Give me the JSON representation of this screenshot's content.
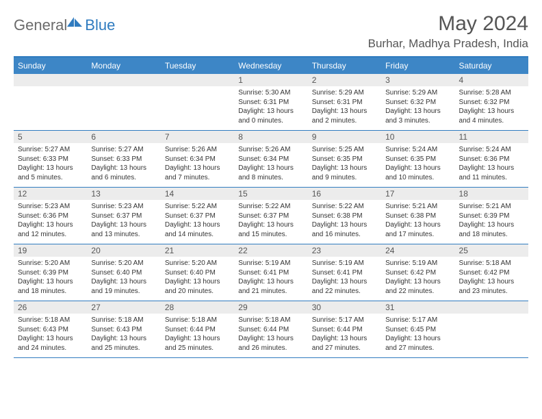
{
  "brand": {
    "part1": "General",
    "part2": "Blue"
  },
  "title": "May 2024",
  "subtitle": "Burhar, Madhya Pradesh, India",
  "colors": {
    "header_bg": "#3d86c6",
    "accent": "#2f7bbf",
    "daynum_bg": "#ececec",
    "text_muted": "#555555",
    "text_body": "#333333"
  },
  "day_headers": [
    "Sunday",
    "Monday",
    "Tuesday",
    "Wednesday",
    "Thursday",
    "Friday",
    "Saturday"
  ],
  "weeks": [
    [
      {
        "day": "",
        "empty": true
      },
      {
        "day": "",
        "empty": true
      },
      {
        "day": "",
        "empty": true
      },
      {
        "day": "1",
        "sunrise": "5:30 AM",
        "sunset": "6:31 PM",
        "daylight": "13 hours and 0 minutes."
      },
      {
        "day": "2",
        "sunrise": "5:29 AM",
        "sunset": "6:31 PM",
        "daylight": "13 hours and 2 minutes."
      },
      {
        "day": "3",
        "sunrise": "5:29 AM",
        "sunset": "6:32 PM",
        "daylight": "13 hours and 3 minutes."
      },
      {
        "day": "4",
        "sunrise": "5:28 AM",
        "sunset": "6:32 PM",
        "daylight": "13 hours and 4 minutes."
      }
    ],
    [
      {
        "day": "5",
        "sunrise": "5:27 AM",
        "sunset": "6:33 PM",
        "daylight": "13 hours and 5 minutes."
      },
      {
        "day": "6",
        "sunrise": "5:27 AM",
        "sunset": "6:33 PM",
        "daylight": "13 hours and 6 minutes."
      },
      {
        "day": "7",
        "sunrise": "5:26 AM",
        "sunset": "6:34 PM",
        "daylight": "13 hours and 7 minutes."
      },
      {
        "day": "8",
        "sunrise": "5:26 AM",
        "sunset": "6:34 PM",
        "daylight": "13 hours and 8 minutes."
      },
      {
        "day": "9",
        "sunrise": "5:25 AM",
        "sunset": "6:35 PM",
        "daylight": "13 hours and 9 minutes."
      },
      {
        "day": "10",
        "sunrise": "5:24 AM",
        "sunset": "6:35 PM",
        "daylight": "13 hours and 10 minutes."
      },
      {
        "day": "11",
        "sunrise": "5:24 AM",
        "sunset": "6:36 PM",
        "daylight": "13 hours and 11 minutes."
      }
    ],
    [
      {
        "day": "12",
        "sunrise": "5:23 AM",
        "sunset": "6:36 PM",
        "daylight": "13 hours and 12 minutes."
      },
      {
        "day": "13",
        "sunrise": "5:23 AM",
        "sunset": "6:37 PM",
        "daylight": "13 hours and 13 minutes."
      },
      {
        "day": "14",
        "sunrise": "5:22 AM",
        "sunset": "6:37 PM",
        "daylight": "13 hours and 14 minutes."
      },
      {
        "day": "15",
        "sunrise": "5:22 AM",
        "sunset": "6:37 PM",
        "daylight": "13 hours and 15 minutes."
      },
      {
        "day": "16",
        "sunrise": "5:22 AM",
        "sunset": "6:38 PM",
        "daylight": "13 hours and 16 minutes."
      },
      {
        "day": "17",
        "sunrise": "5:21 AM",
        "sunset": "6:38 PM",
        "daylight": "13 hours and 17 minutes."
      },
      {
        "day": "18",
        "sunrise": "5:21 AM",
        "sunset": "6:39 PM",
        "daylight": "13 hours and 18 minutes."
      }
    ],
    [
      {
        "day": "19",
        "sunrise": "5:20 AM",
        "sunset": "6:39 PM",
        "daylight": "13 hours and 18 minutes."
      },
      {
        "day": "20",
        "sunrise": "5:20 AM",
        "sunset": "6:40 PM",
        "daylight": "13 hours and 19 minutes."
      },
      {
        "day": "21",
        "sunrise": "5:20 AM",
        "sunset": "6:40 PM",
        "daylight": "13 hours and 20 minutes."
      },
      {
        "day": "22",
        "sunrise": "5:19 AM",
        "sunset": "6:41 PM",
        "daylight": "13 hours and 21 minutes."
      },
      {
        "day": "23",
        "sunrise": "5:19 AM",
        "sunset": "6:41 PM",
        "daylight": "13 hours and 22 minutes."
      },
      {
        "day": "24",
        "sunrise": "5:19 AM",
        "sunset": "6:42 PM",
        "daylight": "13 hours and 22 minutes."
      },
      {
        "day": "25",
        "sunrise": "5:18 AM",
        "sunset": "6:42 PM",
        "daylight": "13 hours and 23 minutes."
      }
    ],
    [
      {
        "day": "26",
        "sunrise": "5:18 AM",
        "sunset": "6:43 PM",
        "daylight": "13 hours and 24 minutes."
      },
      {
        "day": "27",
        "sunrise": "5:18 AM",
        "sunset": "6:43 PM",
        "daylight": "13 hours and 25 minutes."
      },
      {
        "day": "28",
        "sunrise": "5:18 AM",
        "sunset": "6:44 PM",
        "daylight": "13 hours and 25 minutes."
      },
      {
        "day": "29",
        "sunrise": "5:18 AM",
        "sunset": "6:44 PM",
        "daylight": "13 hours and 26 minutes."
      },
      {
        "day": "30",
        "sunrise": "5:17 AM",
        "sunset": "6:44 PM",
        "daylight": "13 hours and 27 minutes."
      },
      {
        "day": "31",
        "sunrise": "5:17 AM",
        "sunset": "6:45 PM",
        "daylight": "13 hours and 27 minutes."
      },
      {
        "day": "",
        "empty": true
      }
    ]
  ],
  "labels": {
    "sunrise": "Sunrise:",
    "sunset": "Sunset:",
    "daylight": "Daylight:"
  }
}
